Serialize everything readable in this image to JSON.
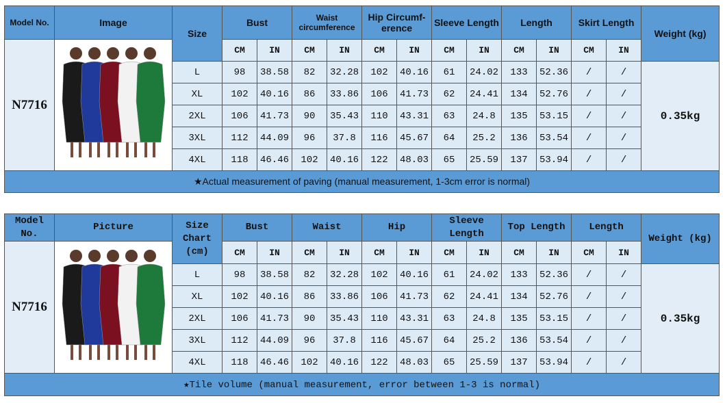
{
  "tables": [
    {
      "headers": {
        "model": "Model No.",
        "image": "Image",
        "size": "Size",
        "weight": "Weight (kg)"
      },
      "groups": [
        "Bust",
        "Waist\ncircumference",
        "Hip Circumf-\nerence",
        "Sleeve Length",
        "Length",
        "Skirt Length"
      ],
      "units": [
        "CM",
        "IN"
      ],
      "model": "N7716",
      "weight": "0.35kg",
      "rows": [
        {
          "size": "L",
          "values": [
            98,
            38.58,
            82,
            32.28,
            102,
            40.16,
            61,
            24.02,
            133,
            52.36,
            "/",
            "/"
          ]
        },
        {
          "size": "XL",
          "values": [
            102,
            40.16,
            86,
            33.86,
            106,
            41.73,
            62,
            24.41,
            134,
            52.76,
            "/",
            "/"
          ]
        },
        {
          "size": "2XL",
          "values": [
            106,
            41.73,
            90,
            35.43,
            110,
            43.31,
            63,
            24.8,
            135,
            53.15,
            "/",
            "/"
          ]
        },
        {
          "size": "3XL",
          "values": [
            112,
            44.09,
            96,
            37.8,
            116,
            45.67,
            64,
            25.2,
            136,
            53.54,
            "/",
            "/"
          ]
        },
        {
          "size": "4XL",
          "values": [
            118,
            46.46,
            102,
            40.16,
            122,
            48.03,
            65,
            25.59,
            137,
            53.94,
            "/",
            "/"
          ]
        }
      ],
      "note": "★Actual measurement of paving (manual measurement, 1-3cm error is normal)"
    },
    {
      "headers": {
        "model": "Model No.",
        "image": "Picture",
        "size": "Size\nChart\n(cm)",
        "weight": "Weight (kg)"
      },
      "groups": [
        "Bust",
        "Waist",
        "Hip",
        "Sleeve\nLength",
        "Top Length",
        "Length"
      ],
      "units": [
        "CM",
        "IN"
      ],
      "model": "N7716",
      "weight": "0.35kg",
      "rows": [
        {
          "size": "L",
          "values": [
            98,
            38.58,
            82,
            32.28,
            102,
            40.16,
            61,
            24.02,
            133,
            52.36,
            "/",
            "/"
          ]
        },
        {
          "size": "XL",
          "values": [
            102,
            40.16,
            86,
            33.86,
            106,
            41.73,
            62,
            24.41,
            134,
            52.76,
            "/",
            "/"
          ]
        },
        {
          "size": "2XL",
          "values": [
            106,
            41.73,
            90,
            35.43,
            110,
            43.31,
            63,
            24.8,
            135,
            53.15,
            "/",
            "/"
          ]
        },
        {
          "size": "3XL",
          "values": [
            112,
            44.09,
            96,
            37.8,
            116,
            45.67,
            64,
            25.2,
            136,
            53.54,
            "/",
            "/"
          ]
        },
        {
          "size": "4XL",
          "values": [
            118,
            46.46,
            102,
            40.16,
            122,
            48.03,
            65,
            25.59,
            137,
            53.94,
            "/",
            "/"
          ]
        }
      ],
      "note": "★Tile volume (manual measurement, error between 1-3 is normal)"
    }
  ]
}
